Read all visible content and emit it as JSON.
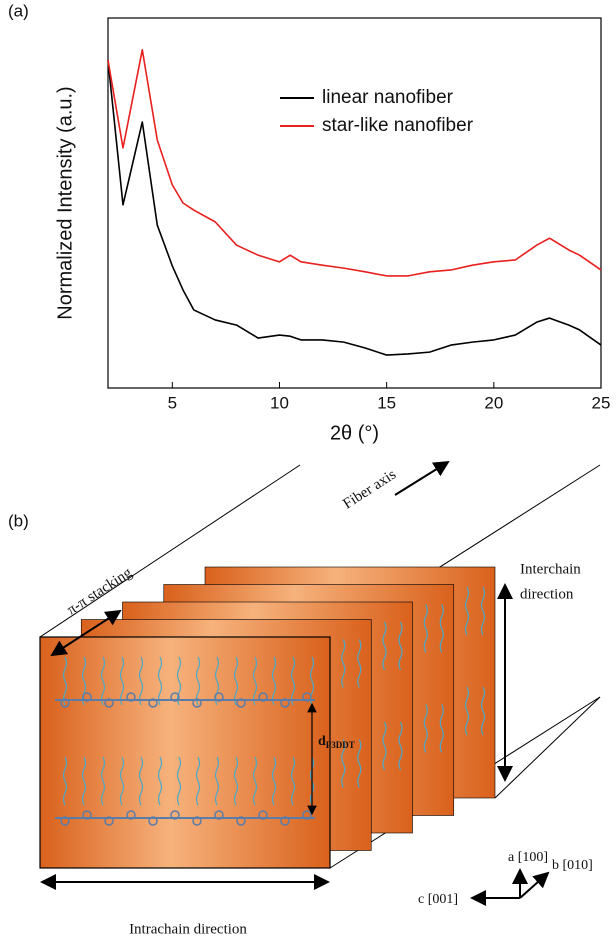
{
  "chart_data": {
    "type": "line",
    "panel_label": "(a)",
    "x_label": "2θ (°)",
    "y_label": "Normalized Intensity (a.u.)",
    "x": [
      2,
      2.7,
      3.6,
      4.3,
      5,
      5.5,
      6,
      7,
      8,
      9,
      10,
      10.5,
      11,
      12,
      13,
      14,
      15,
      16,
      17,
      18,
      19,
      20,
      21,
      22,
      22.6,
      23.5,
      24,
      25
    ],
    "series": [
      {
        "name": "linear nanofiber",
        "color": "#000000",
        "values": [
          88.6,
          49.5,
          71.9,
          44,
          33,
          26.5,
          21.1,
          18.4,
          17,
          13.5,
          14.3,
          14,
          13,
          13,
          12.4,
          10.8,
          8.9,
          9.2,
          9.7,
          11.6,
          12.4,
          13,
          14.3,
          17.8,
          18.9,
          17,
          15.7,
          11.6
        ]
      },
      {
        "name": "star-like nanofiber",
        "color": "#e8201e",
        "values": [
          88.6,
          64.9,
          91.4,
          67,
          54.9,
          50,
          48.1,
          44.9,
          38.6,
          35.9,
          34.1,
          35.9,
          34.1,
          33.2,
          32.4,
          31.4,
          30.3,
          30.3,
          31.4,
          31.9,
          33.2,
          34.1,
          34.6,
          38.6,
          40.5,
          37.3,
          35.9,
          31.9
        ]
      }
    ],
    "xlim": [
      2,
      25
    ],
    "xticks": [
      5,
      10,
      15,
      20,
      25
    ],
    "ylim": [
      0,
      100
    ],
    "legend": "upper right"
  },
  "diagram": {
    "panel_label": "(b)",
    "fiber_axis": "Fiber axis",
    "pi_stacking": "π-π stacking",
    "interchain": [
      "Interchain",
      "direction"
    ],
    "d_spacing": {
      "main": "d",
      "sub": "P3DDT"
    },
    "intrachain": "Intrachain direction",
    "axes": {
      "a": "a [100]",
      "b": "b [010]",
      "c": "c [001]"
    }
  }
}
